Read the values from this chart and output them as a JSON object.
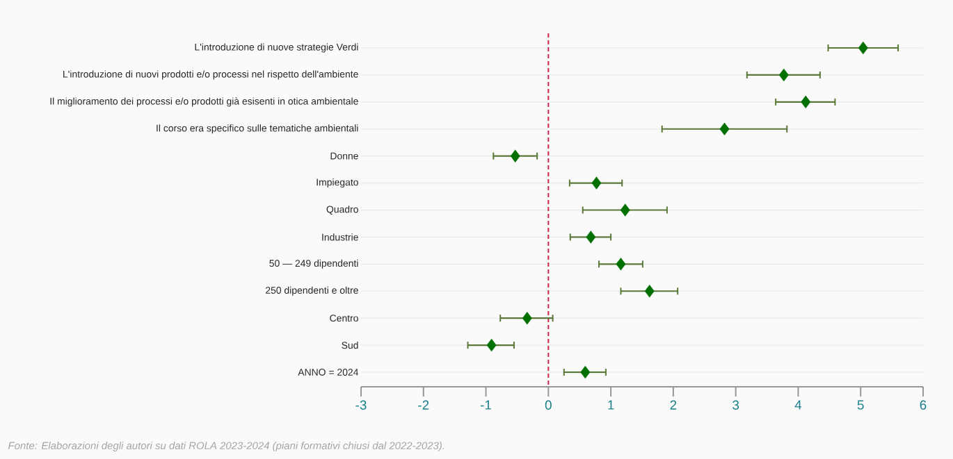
{
  "chart_data": {
    "type": "scatter",
    "orientation": "horizontal",
    "categories": [
      "L'introduzione di nuove strategie Verdi",
      "L'introduzione di nuovi prodotti e/o processi nel rispetto dell'ambiente",
      "Il miglioramento dei processi e/o prodotti già esisenti in otica ambientale",
      "Il corso era specifico sulle tematiche ambientali",
      "Donne",
      "Impiegato",
      "Quadro",
      "Industrie",
      "50 — 249 dipendenti",
      "250 dipendenti e oltre",
      "Centro",
      "Sud",
      "ANNO = 2024"
    ],
    "series": [
      {
        "color": "#007000",
        "values": [
          5.04,
          3.77,
          4.12,
          2.82,
          -0.53,
          0.77,
          1.23,
          0.68,
          1.16,
          1.62,
          -0.34,
          -0.91,
          0.59
        ],
        "errors": [
          [
            4.48,
            5.6
          ],
          [
            3.18,
            4.35
          ],
          [
            3.64,
            4.59
          ],
          [
            1.82,
            3.82
          ],
          [
            -0.88,
            -0.18
          ],
          [
            0.34,
            1.18
          ],
          [
            0.55,
            1.9
          ],
          [
            0.35,
            1.0
          ],
          [
            0.81,
            1.51
          ],
          [
            1.16,
            2.07
          ],
          [
            -0.77,
            0.07
          ],
          [
            -1.29,
            -0.55
          ],
          [
            0.25,
            0.92
          ]
        ]
      }
    ],
    "xlim": [
      -3,
      6
    ],
    "xticks": [
      -3,
      -2,
      -1,
      0,
      1,
      2,
      3,
      4,
      5,
      6
    ],
    "ref_lines": [
      {
        "axis": "x",
        "value": 0,
        "color": "#c8264a",
        "line_style": "dashed"
      }
    ],
    "grid": "y",
    "marker": "diamond",
    "annotations": [
      "Fonte: Elaborazioni degli autori su dati ROLA 2023-2024 (piani formativi chiusi dal 2022-2023)."
    ]
  }
}
